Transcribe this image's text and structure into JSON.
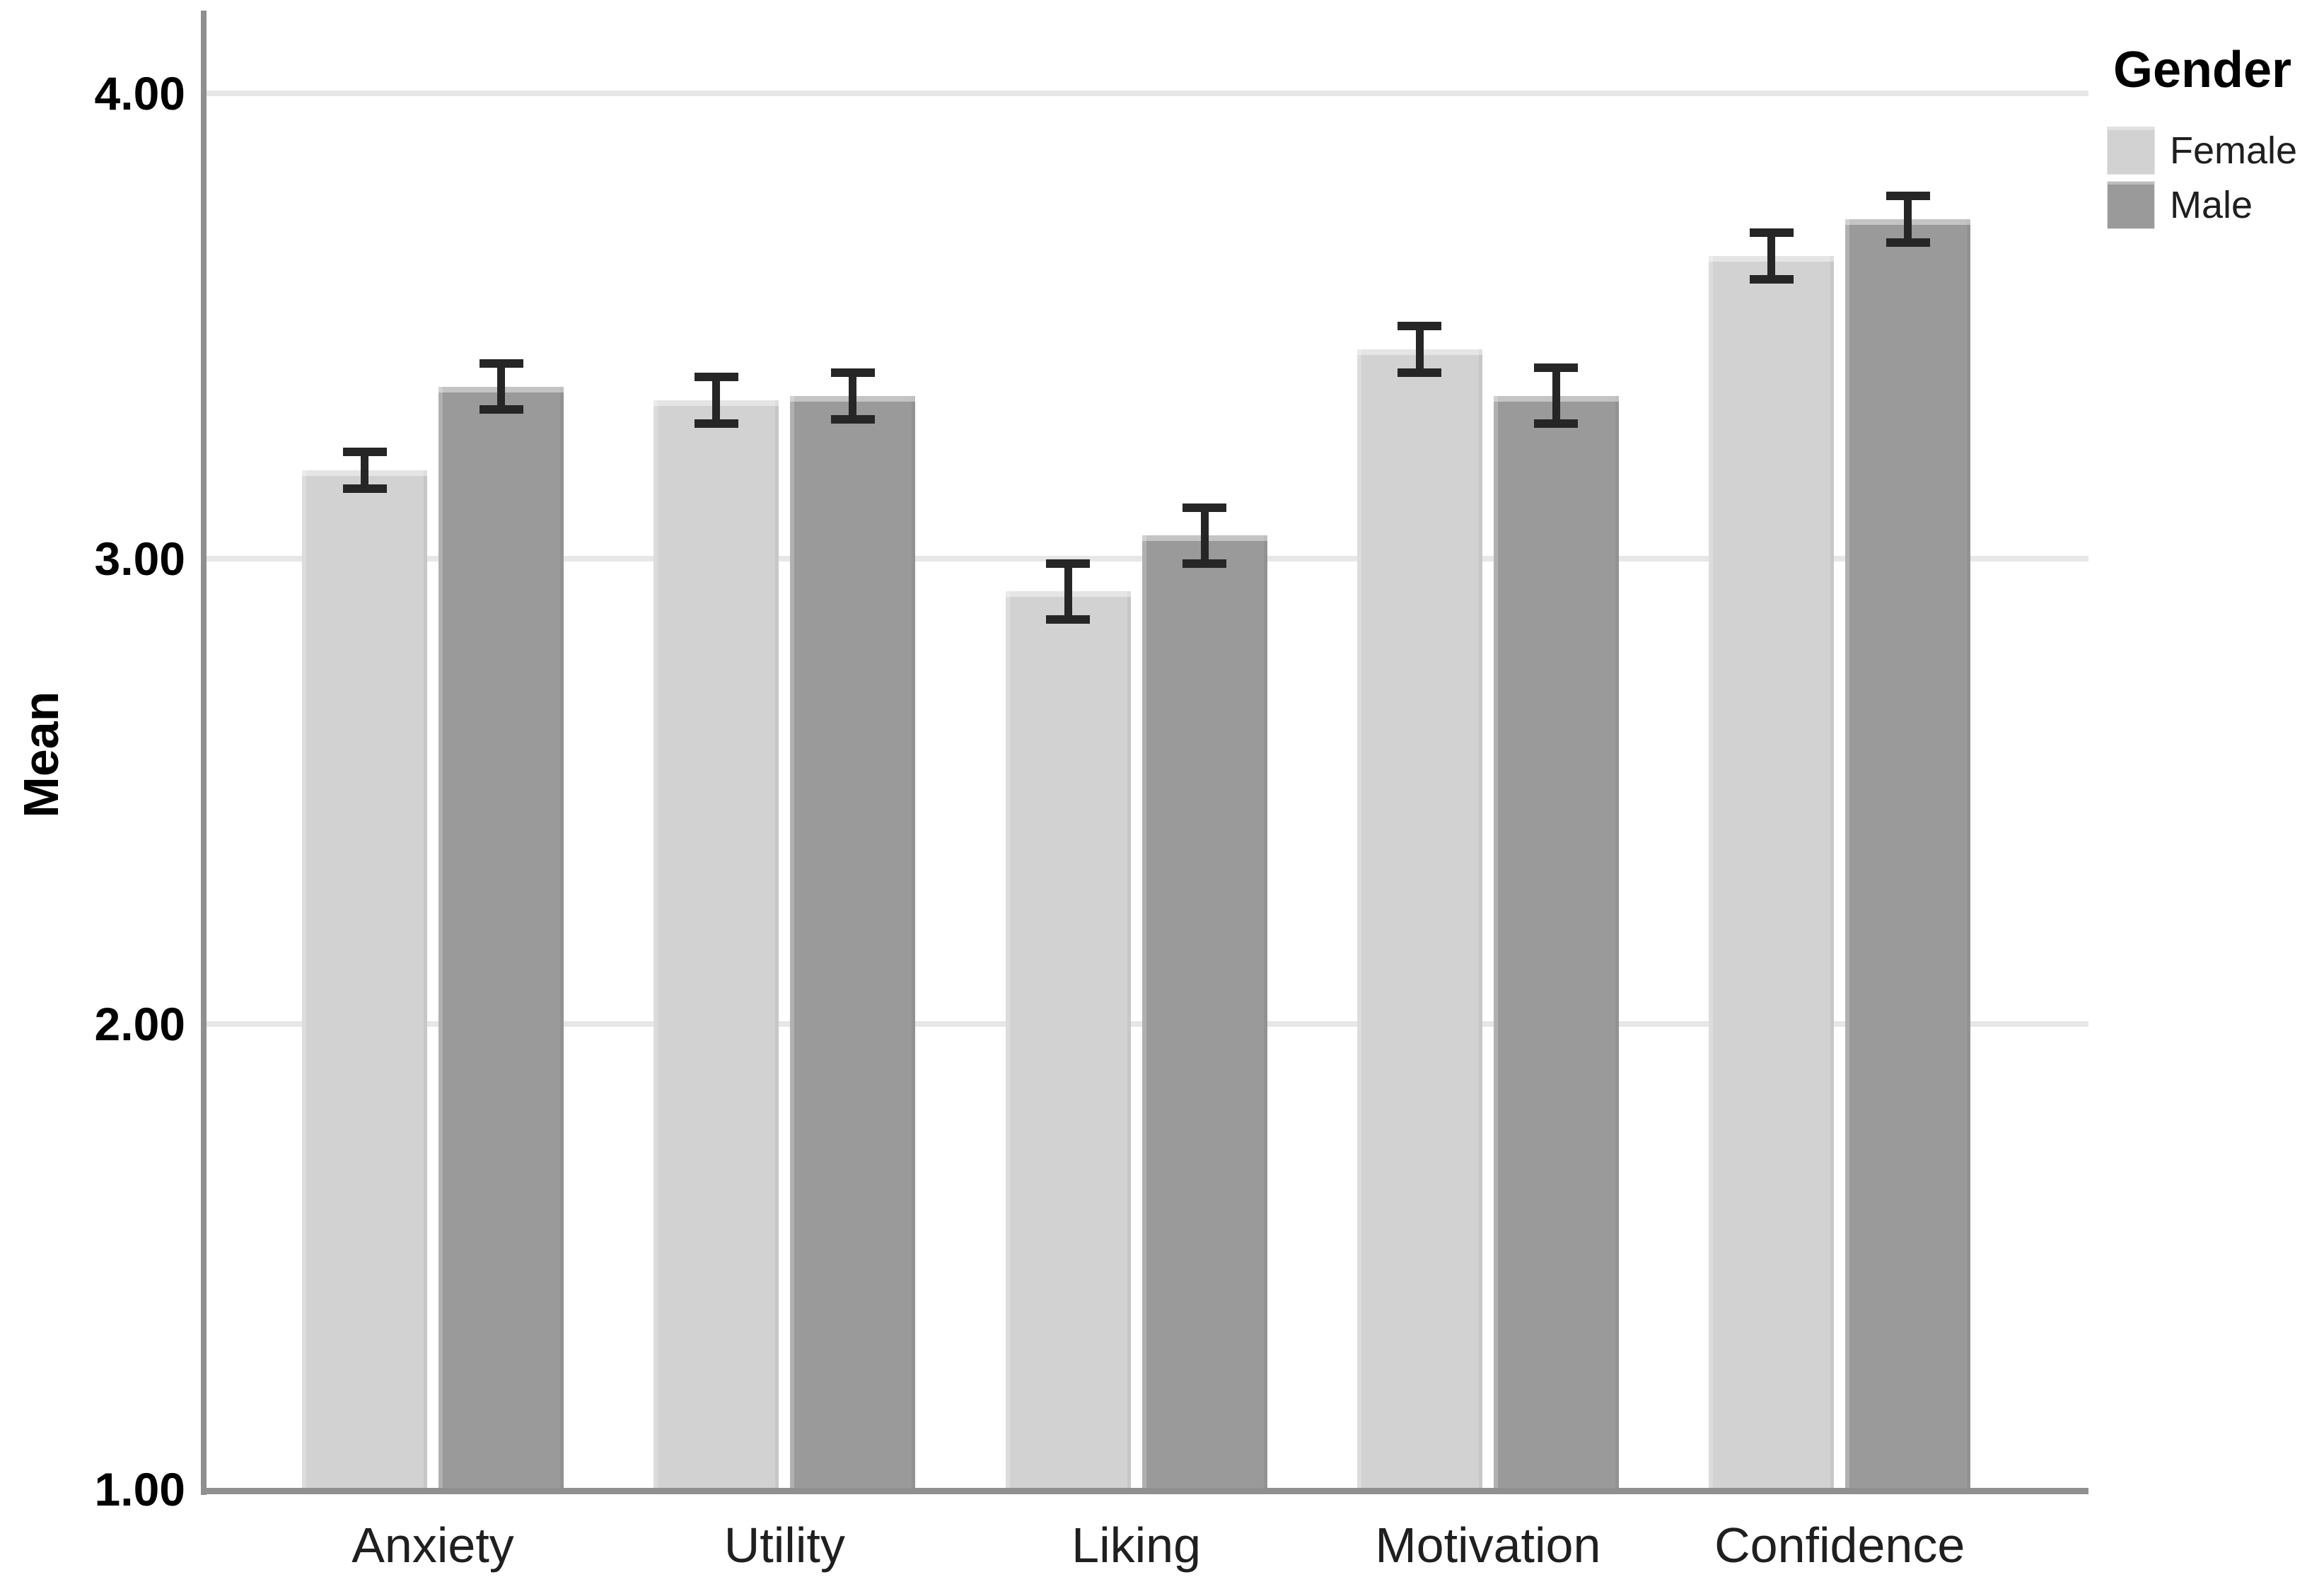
{
  "chart_data": {
    "type": "bar",
    "title": "",
    "ylabel": "Mean",
    "xlabel": "",
    "categories": [
      "Anxiety",
      "Utility",
      "Liking",
      "Motivation",
      "Confidence"
    ],
    "series": [
      {
        "name": "Female",
        "color": "#d2d2d2",
        "values": [
          3.19,
          3.34,
          2.93,
          3.45,
          3.65
        ],
        "errors": [
          0.04,
          0.05,
          0.06,
          0.05,
          0.05
        ]
      },
      {
        "name": "Male",
        "color": "#9a9a9a",
        "values": [
          3.37,
          3.35,
          3.05,
          3.35,
          3.73
        ],
        "errors": [
          0.05,
          0.05,
          0.06,
          0.06,
          0.05
        ]
      }
    ],
    "ylim": [
      1.0,
      4.18
    ],
    "yticks": [
      "1.00",
      "2.00",
      "3.00",
      "4.00"
    ],
    "ytick_values": [
      1.0,
      2.0,
      3.0,
      4.0
    ],
    "grid": true,
    "error_bars": true,
    "legend_title": "Gender",
    "legend_position": "top-right"
  },
  "colors": {
    "background": "#ffffff",
    "gridline": "#e7e7e7",
    "axis": "#8f8f8f",
    "error_bar": "#262626",
    "tick_text": "#000000",
    "category_text": "#1f1f1f"
  }
}
